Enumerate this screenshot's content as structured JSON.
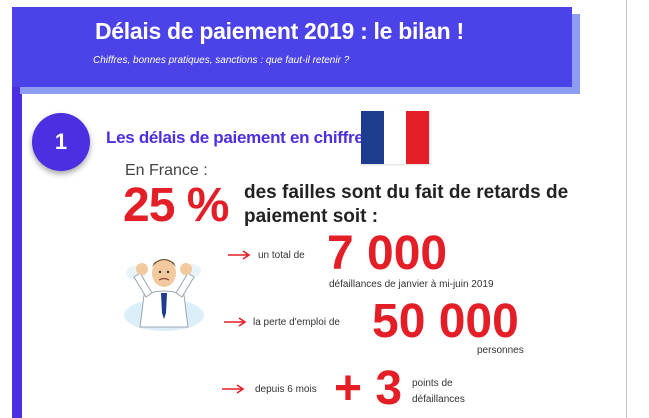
{
  "header": {
    "title": "Délais de paiement 2019 : le bilan !",
    "subtitle": "Chiffres, bonnes pratiques, sanctions : que faut-il retenir ?"
  },
  "section": {
    "number": "1",
    "title": "Les délais de paiement en chiffres",
    "flag_icon": "france-flag-icon",
    "flag_colors": [
      "#1d3c8e",
      "#ffffff",
      "#e31e26"
    ]
  },
  "intro": {
    "lead": "En France :",
    "percent": "25 %",
    "text": "des failles sont du fait de retards de paiement soit :"
  },
  "stats": [
    {
      "label": "un total de",
      "value": "7 000",
      "caption": "défaillances de janvier à mi-juin 2019"
    },
    {
      "label": "la perte d'emploi de",
      "value": "50 000",
      "caption": "personnes"
    },
    {
      "label": "depuis 6 mois",
      "value": "+ 3",
      "caption_line1": "points de",
      "caption_line2": "défaillances"
    }
  ],
  "colors": {
    "accent": "#4b2fe0",
    "highlight": "#e31e26"
  }
}
